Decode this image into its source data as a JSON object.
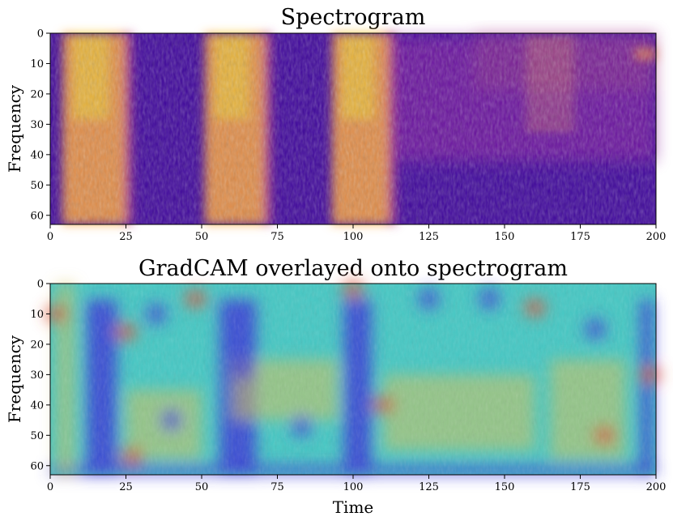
{
  "chart_data": [
    {
      "type": "heatmap",
      "title": "Spectrogram",
      "xlabel": "",
      "ylabel": "Frequency",
      "xlim": [
        0,
        200
      ],
      "ylim": [
        63,
        0
      ],
      "xticks": [
        0,
        25,
        50,
        75,
        100,
        125,
        150,
        175,
        200
      ],
      "yticks": [
        0,
        10,
        20,
        30,
        40,
        50,
        60
      ],
      "colormap": "plasma",
      "description_values": {
        "high_energy_time_bands": [
          [
            4,
            26
          ],
          [
            51,
            72
          ],
          [
            93,
            113
          ]
        ],
        "harmonic_band_time": [
          157,
          173
        ]
      },
      "colors": {
        "low": "#3d049b",
        "mid": "#b5318a",
        "high": "#fca338",
        "peak": "#f0f921"
      }
    },
    {
      "type": "heatmap",
      "title": "GradCAM overlayed onto spectrogram",
      "xlabel": "Time",
      "ylabel": "Frequency",
      "xlim": [
        0,
        200
      ],
      "ylim": [
        63,
        0
      ],
      "xticks": [
        0,
        25,
        50,
        75,
        100,
        125,
        150,
        175,
        200
      ],
      "yticks": [
        0,
        10,
        20,
        30,
        40,
        50,
        60
      ],
      "colormap": "jet",
      "colors": {
        "low": "#3b3bd6",
        "mid": "#46c8c4",
        "high": "#d6c25a",
        "peak": "#d8553e"
      }
    }
  ]
}
